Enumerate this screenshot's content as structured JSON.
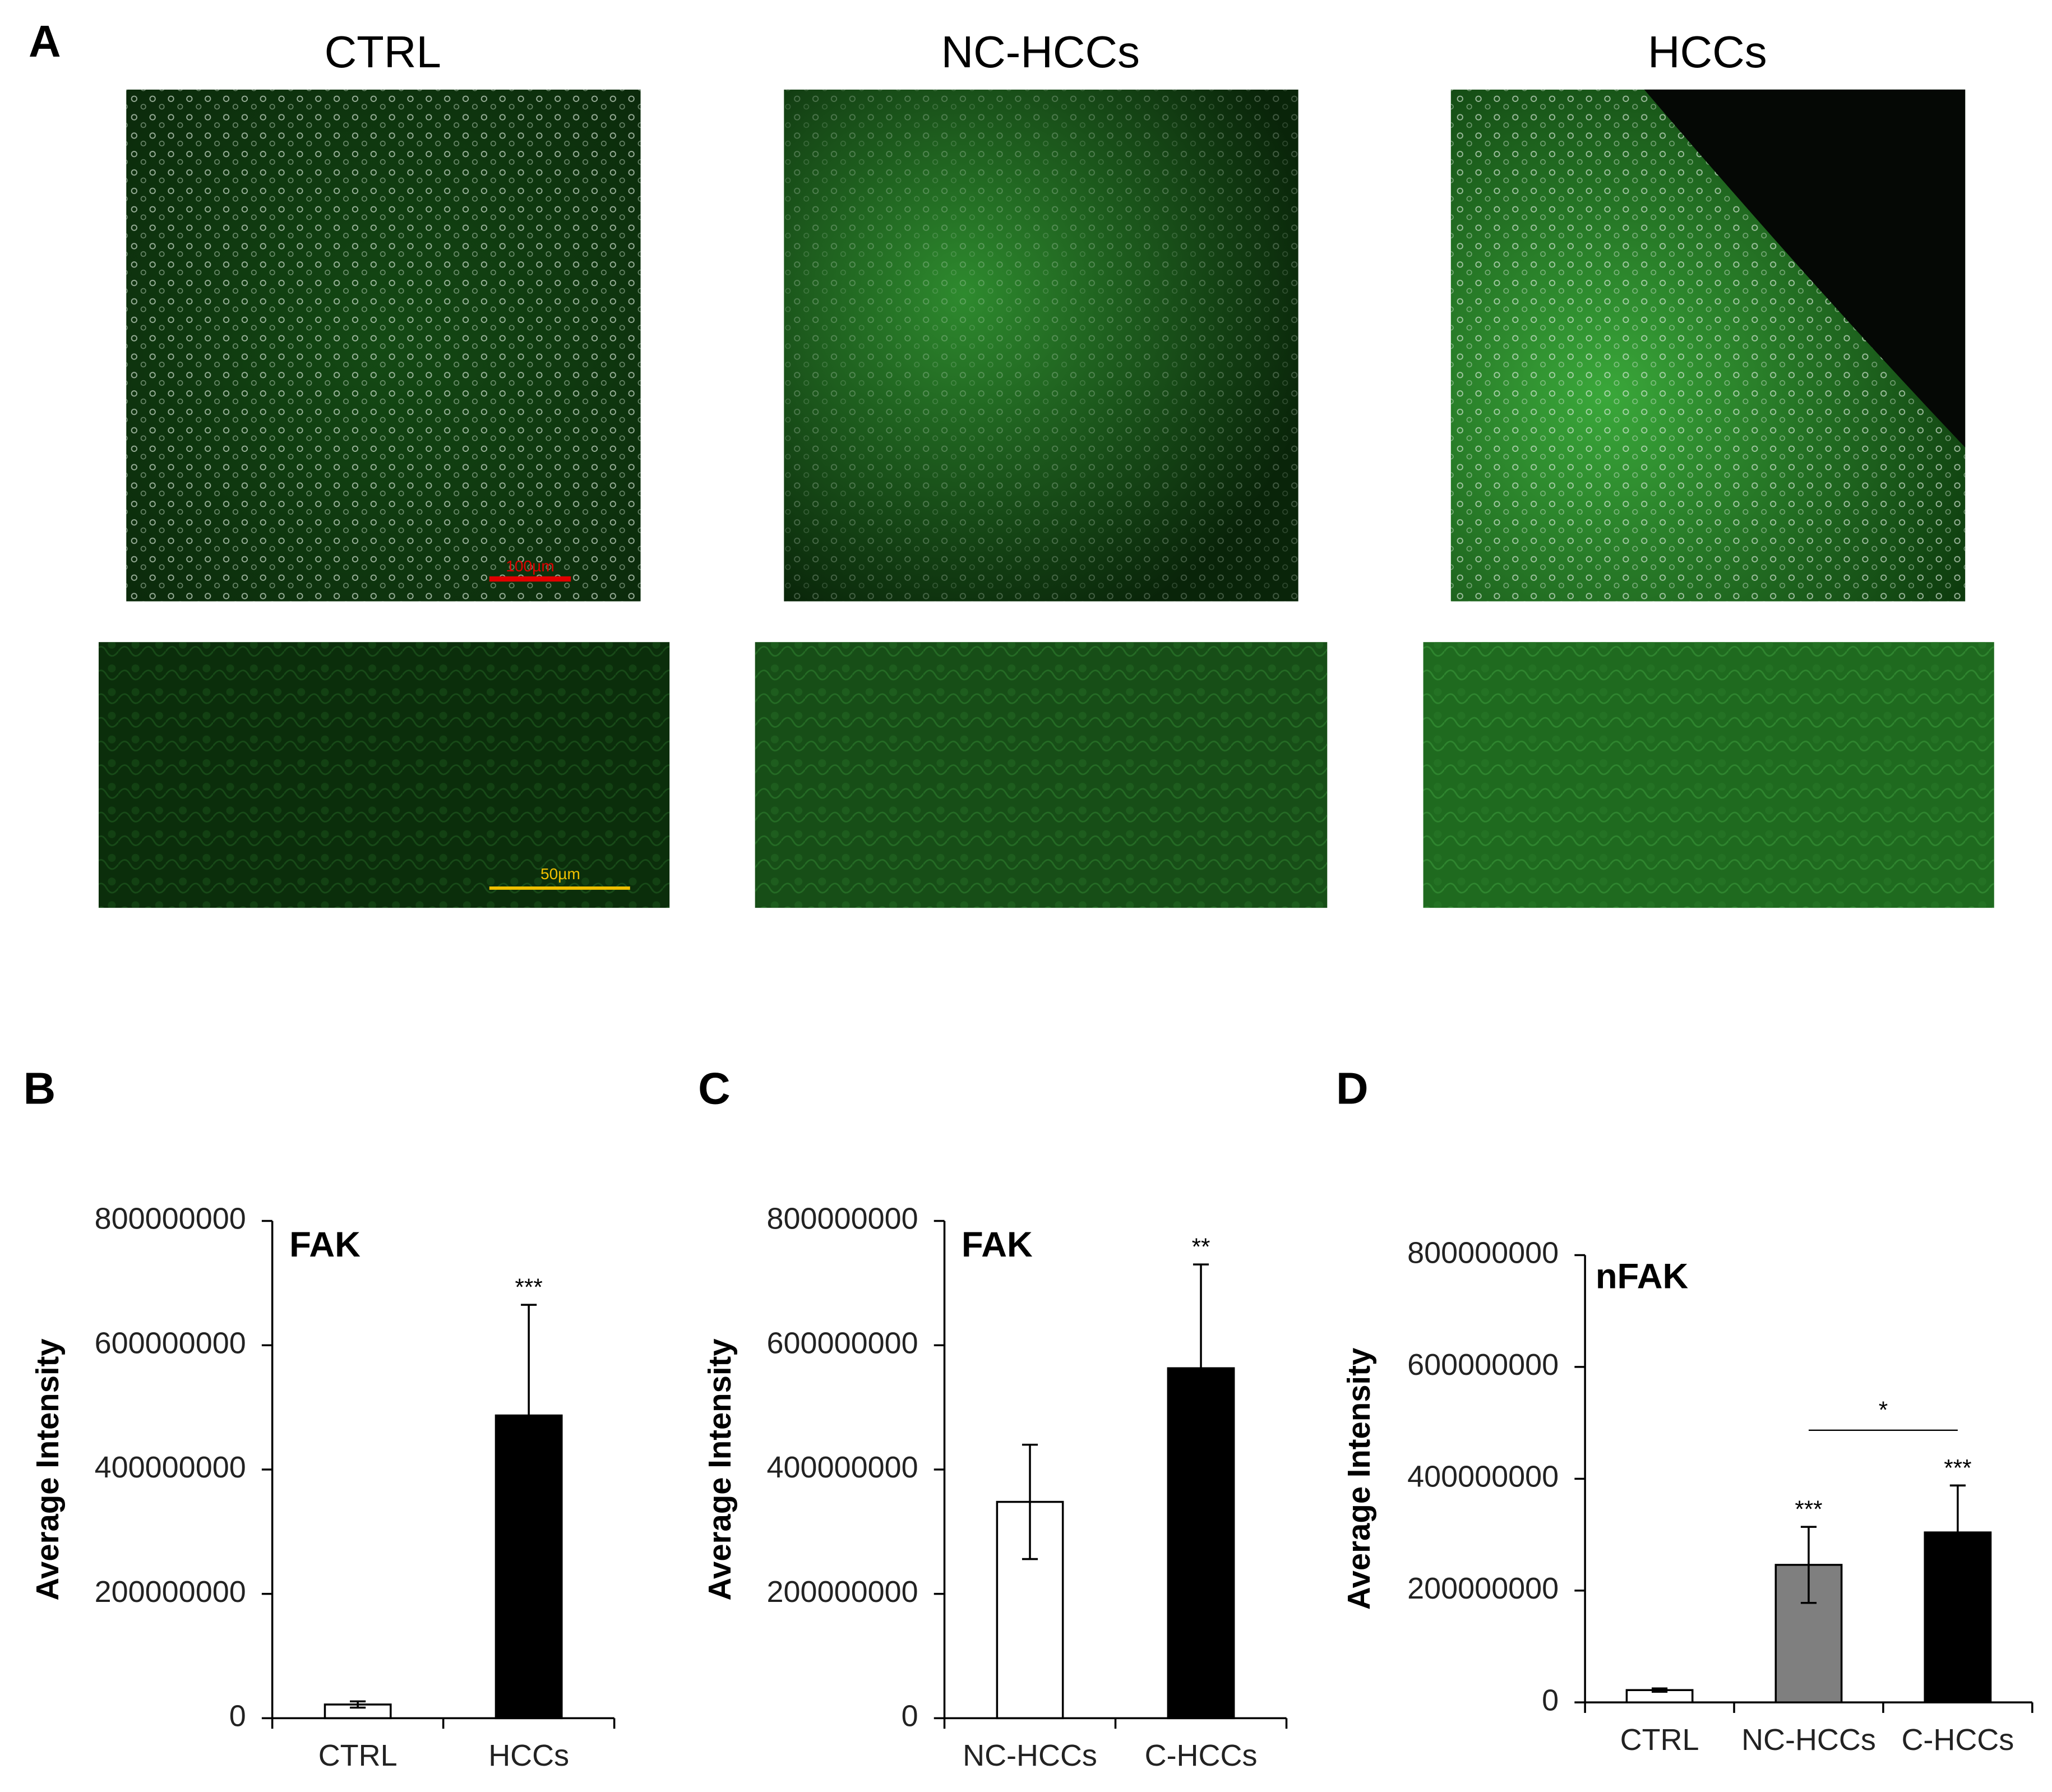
{
  "figure": {
    "panel_label": "A",
    "image_titles": [
      "CTRL",
      "NC-HCCs",
      "HCCs"
    ],
    "scale_bars": [
      "100µm",
      "50µm"
    ]
  },
  "chart_data": [
    {
      "type": "bar",
      "panel": "B",
      "label": "FAK",
      "ylabel": "Average Intensity",
      "categories": [
        "CTRL",
        "HCCs"
      ],
      "values": [
        22000000,
        487000000
      ],
      "errors": [
        5000000,
        178000000
      ],
      "colors": [
        "#ffffff",
        "#000000"
      ],
      "ylim": [
        0,
        800000000
      ],
      "yticks": [
        0,
        200000000,
        400000000,
        600000000,
        800000000
      ],
      "significance": [
        {
          "category": "HCCs",
          "text": "***"
        }
      ]
    },
    {
      "type": "bar",
      "panel": "C",
      "label": "FAK",
      "ylabel": "Average Intensity",
      "categories": [
        "NC-HCCs",
        "C-HCCs"
      ],
      "values": [
        348000000,
        563000000
      ],
      "errors": [
        92000000,
        167000000
      ],
      "colors": [
        "#ffffff",
        "#000000"
      ],
      "ylim": [
        0,
        800000000
      ],
      "yticks": [
        0,
        200000000,
        400000000,
        600000000,
        800000000
      ],
      "significance": [
        {
          "category": "C-HCCs",
          "text": "**"
        }
      ]
    },
    {
      "type": "bar",
      "panel": "D",
      "label": "nFAK",
      "ylabel": "Average Intensity",
      "categories": [
        "CTRL",
        "NC-HCCs",
        "C-HCCs"
      ],
      "values": [
        22000000,
        246000000,
        304000000
      ],
      "errors": [
        3000000,
        68000000,
        84000000
      ],
      "colors": [
        "#ffffff",
        "#7f7f7f",
        "#000000"
      ],
      "ylim": [
        0,
        800000000
      ],
      "yticks": [
        0,
        200000000,
        400000000,
        600000000,
        800000000
      ],
      "significance": [
        {
          "category": "NC-HCCs",
          "text": "***"
        },
        {
          "category": "C-HCCs",
          "text": "***"
        }
      ],
      "bracket": {
        "from": "NC-HCCs",
        "to": "C-HCCs",
        "text": "*"
      }
    }
  ]
}
